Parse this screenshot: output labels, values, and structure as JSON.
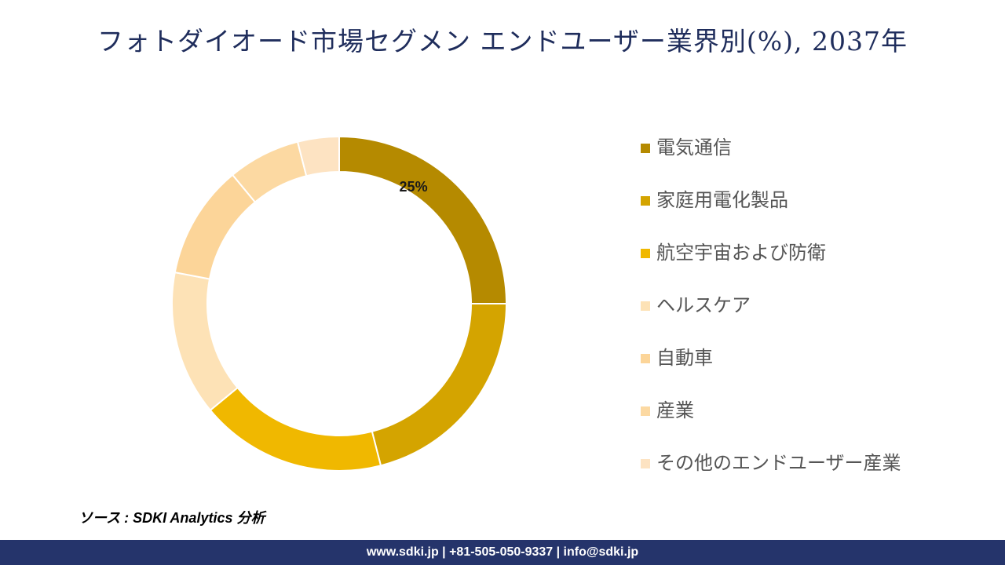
{
  "title": "フォトダイオード市場セグメン エンドユーザー業界別(%), 2037年",
  "chart_data": {
    "type": "pie",
    "style": "donut",
    "title": "フォトダイオード市場セグメン エンドユーザー業界別(%), 2037年",
    "categories": [
      "電気通信",
      "家庭用電化製品",
      "航空宇宙および防衛",
      "ヘルスケア",
      "自動車",
      "産業",
      "その他のエンドユーザー産業"
    ],
    "values": [
      25,
      21,
      18,
      14,
      11,
      7,
      4
    ],
    "data_labels": [
      "25%",
      "",
      "",
      "",
      "",
      "",
      ""
    ],
    "colors": [
      "#b58a00",
      "#d4a400",
      "#f0b800",
      "#fde2b6",
      "#fcd599",
      "#fcd9a2",
      "#fde3c2"
    ],
    "legend_position": "right"
  },
  "legend": [
    {
      "label": "電気通信",
      "color": "#b58a00"
    },
    {
      "label": "家庭用電化製品",
      "color": "#d4a400"
    },
    {
      "label": "航空宇宙および防衛",
      "color": "#f0b800"
    },
    {
      "label": "ヘルスケア",
      "color": "#fde2b6"
    },
    {
      "label": "自動車",
      "color": "#fcd599"
    },
    {
      "label": "産業",
      "color": "#fcd9a2"
    },
    {
      "label": "その他のエンドユーザー産業",
      "color": "#fde3c2"
    }
  ],
  "source": "ソース : SDKI Analytics 分析",
  "footer": "www.sdki.jp | +81-505-050-9337 | info@sdki.jp"
}
